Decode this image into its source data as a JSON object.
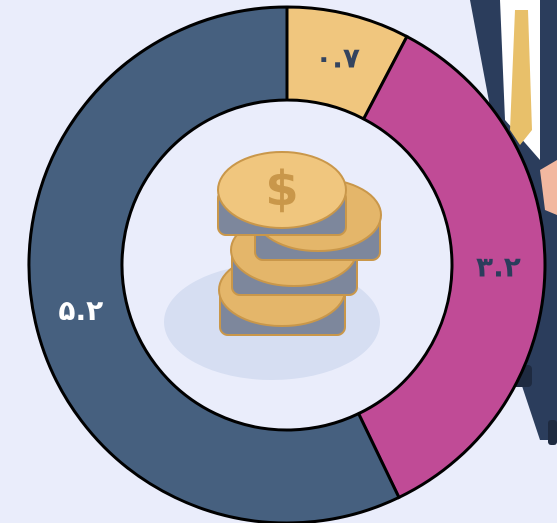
{
  "chart_data": {
    "type": "donut",
    "values": [
      0.7,
      3.2,
      5.2
    ],
    "value_labels": [
      "۰.۷",
      "۳.۲",
      "۵.۲"
    ],
    "colors": [
      "#f0c67e",
      "#c04b96",
      "#46607f"
    ]
  }
}
